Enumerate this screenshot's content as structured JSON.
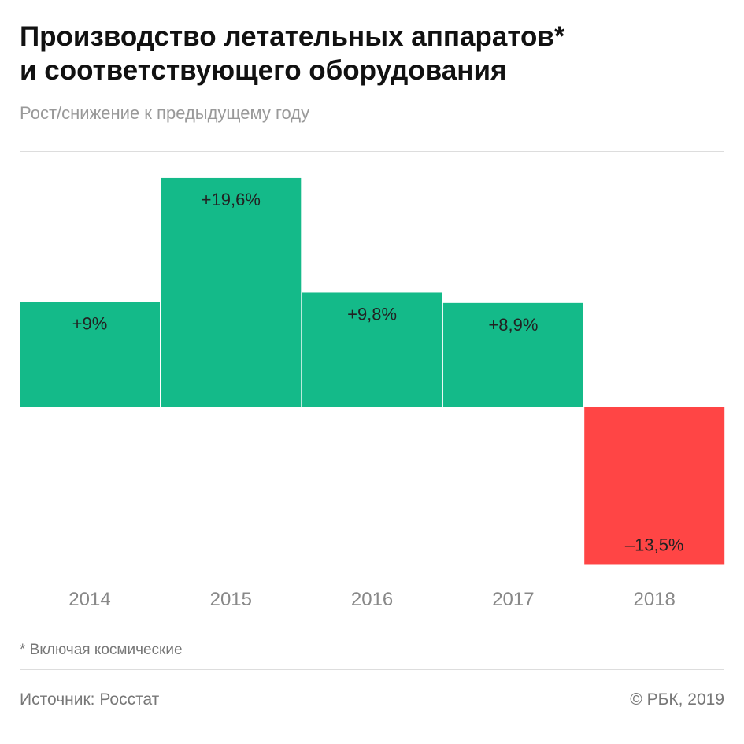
{
  "title_lines": [
    "Производство летательных аппаратов*",
    "и соответствующего оборудования"
  ],
  "subtitle": "Рост/снижение к предыдущему году",
  "footnote": "* Включая космические",
  "source": "Источник: Росстат",
  "copyright": "© РБК, 2019",
  "chart_data": {
    "type": "bar",
    "categories": [
      "2014",
      "2015",
      "2016",
      "2017",
      "2018"
    ],
    "values": [
      9,
      19.6,
      9.8,
      8.9,
      -13.5
    ],
    "data_labels": [
      "+9%",
      "+19,6%",
      "+9,8%",
      "+8,9%",
      "–13,5%"
    ],
    "ylabel": "",
    "xlabel": "",
    "grid": false,
    "colors": {
      "positive": "#14BA89",
      "negative": "#FF4545"
    }
  }
}
